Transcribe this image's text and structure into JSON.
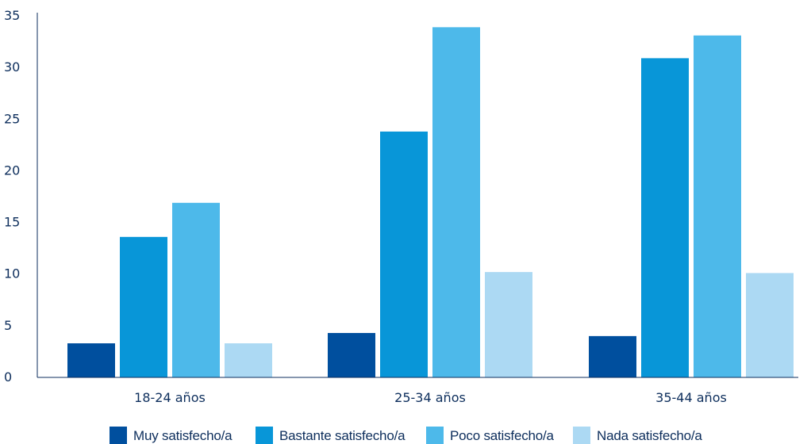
{
  "chart_data": {
    "type": "bar",
    "categories": [
      "18-24 años",
      "25-34 años",
      "35-44 años"
    ],
    "series": [
      {
        "name": "Muy satisfecho/a",
        "color": "#004f9e",
        "values": [
          3.3,
          4.3,
          4.0
        ]
      },
      {
        "name": "Bastante satisfecho/a",
        "color": "#0896d8",
        "values": [
          13.6,
          23.8,
          30.9
        ]
      },
      {
        "name": "Poco satisfecho/a",
        "color": "#4db9ea",
        "values": [
          16.9,
          33.9,
          33.1
        ]
      },
      {
        "name": "Nada satisfecho/a",
        "color": "#acd9f3",
        "values": [
          3.3,
          10.2,
          10.1
        ]
      }
    ],
    "ylim": [
      0,
      35
    ],
    "yticks": [
      0,
      5,
      10,
      15,
      20,
      25,
      30,
      35
    ],
    "title": "",
    "xlabel": "",
    "ylabel": "",
    "grid": false,
    "legend_position": "bottom",
    "axis_color": "#0d2e5c"
  }
}
